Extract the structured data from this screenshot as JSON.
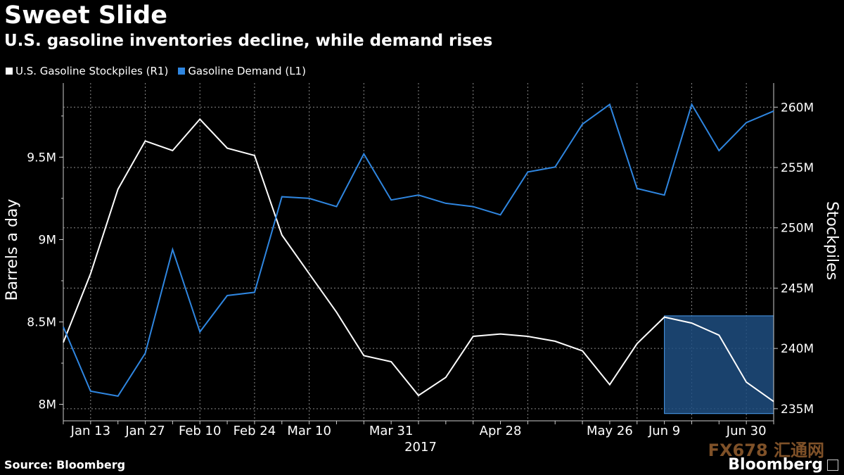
{
  "header": {
    "title": "Sweet Slide",
    "subtitle": "U.S. gasoline inventories decline, while demand rises"
  },
  "footer": {
    "source": "Source: Bloomberg",
    "brand": "Bloomberg",
    "watermark": "FX678 汇通网"
  },
  "colors": {
    "background": "#000000",
    "stockpiles": "#ffffff",
    "demand": "#2f86e0",
    "highlight": "#1e4e80"
  },
  "chart_data": {
    "type": "line",
    "x": [
      "Jan 6",
      "Jan 13",
      "Jan 20",
      "Jan 27",
      "Feb 3",
      "Feb 10",
      "Feb 17",
      "Feb 24",
      "Mar 3",
      "Mar 10",
      "Mar 17",
      "Mar 24",
      "Mar 31",
      "Apr 7",
      "Apr 14",
      "Apr 21",
      "Apr 28",
      "May 5",
      "May 12",
      "May 19",
      "May 26",
      "Jun 2",
      "Jun 9",
      "Jun 16",
      "Jun 23",
      "Jun 30",
      "Jul 7"
    ],
    "x_tick_labels": [
      "Jan 13",
      "Jan 27",
      "Feb 10",
      "Feb 24",
      "Mar 10",
      "Mar 31",
      "Apr 28",
      "May 26",
      "Jun 9",
      "Jun 30"
    ],
    "x_tick_indices": [
      1,
      3,
      5,
      7,
      9,
      12,
      16,
      20,
      22,
      25
    ],
    "x_year_label": "2017",
    "series": [
      {
        "name": "U.S. Gasoline Stockpiles  (R1)",
        "axis": "right",
        "color": "#ffffff",
        "values": [
          240.5,
          246.2,
          253.2,
          257.2,
          256.4,
          259.0,
          256.6,
          256.0,
          249.4,
          246.2,
          243.0,
          239.4,
          238.9,
          236.1,
          237.6,
          241.0,
          241.2,
          241.0,
          240.6,
          239.8,
          237.0,
          240.4,
          242.6,
          242.1,
          241.1,
          237.2,
          235.6
        ]
      },
      {
        "name": "Gasoline Demand (L1)",
        "axis": "left",
        "color": "#2f86e0",
        "values": [
          8.47,
          8.08,
          8.05,
          8.31,
          8.94,
          8.44,
          8.66,
          8.68,
          9.26,
          9.25,
          9.2,
          9.52,
          9.24,
          9.27,
          9.22,
          9.2,
          9.15,
          9.41,
          9.44,
          9.7,
          9.82,
          9.31,
          9.27,
          9.82,
          9.54,
          9.71,
          9.78
        ]
      }
    ],
    "left_axis": {
      "label": "Barrels a day",
      "ylim": [
        7.9,
        9.95
      ],
      "ticks": [
        8,
        8.5,
        9,
        9.5
      ],
      "tick_labels": [
        "8M",
        "8.5M",
        "9M",
        "9.5M"
      ]
    },
    "right_axis": {
      "label": "Stockpiles",
      "ylim": [
        234.0,
        262.0
      ],
      "ticks": [
        235,
        240,
        245,
        250,
        255,
        260
      ],
      "tick_labels": [
        "235M",
        "240M",
        "245M",
        "250M",
        "255M",
        "260M"
      ]
    },
    "highlight_range": {
      "x_start_index": 22,
      "x_end_index": 26
    },
    "grid": true,
    "legend_position": "top-left"
  }
}
